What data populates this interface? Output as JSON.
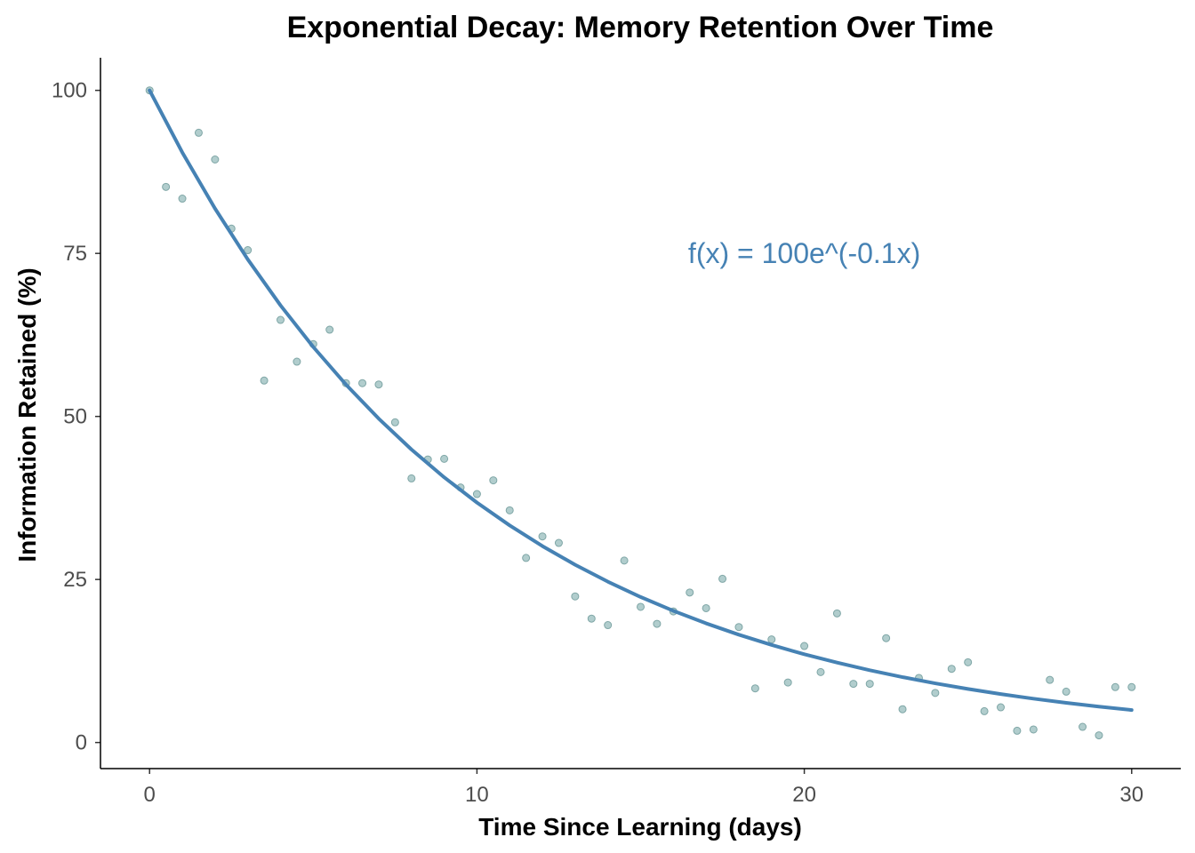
{
  "chart_data": {
    "type": "scatter",
    "title": "Exponential Decay: Memory Retention Over Time",
    "xlabel": "Time Since Learning (days)",
    "ylabel": "Information Retained (%)",
    "xlim": [
      -1.5,
      31.5
    ],
    "ylim": [
      -4,
      105
    ],
    "x_ticks": [
      0,
      10,
      20,
      30
    ],
    "y_ticks": [
      0,
      25,
      50,
      75,
      100
    ],
    "grid": false,
    "legend": "none",
    "annotation": {
      "text": "f(x) = 100e^(-0.1x)",
      "x": 20,
      "y": 75
    },
    "colors": {
      "points": "#a3c4c4",
      "point_outline": "#7fa6a6",
      "curve": "#4682b4",
      "annotation": "#4682b4"
    },
    "series": [
      {
        "kind": "points",
        "x": [
          0,
          0.5,
          1,
          1.5,
          2,
          2.5,
          3,
          3.5,
          4,
          4.5,
          5,
          5.5,
          6,
          6.5,
          7,
          7.5,
          8,
          8.5,
          9,
          9.5,
          10,
          10.5,
          11,
          11.5,
          12,
          12.5,
          13,
          13.5,
          14,
          14.5,
          15,
          15.5,
          16,
          16.5,
          17,
          17.5,
          18,
          18.5,
          19,
          19.5,
          20,
          20.5,
          21,
          21.5,
          22,
          22.5,
          23,
          23.5,
          24,
          24.5,
          25,
          25.5,
          26,
          26.5,
          27,
          27.5,
          28,
          28.5,
          29,
          29.5,
          30
        ],
        "y": [
          100,
          85.2,
          83.4,
          93.5,
          89.4,
          78.8,
          75.5,
          55.5,
          64.8,
          58.4,
          61.1,
          63.3,
          55.1,
          55.1,
          54.9,
          49.1,
          40.5,
          43.4,
          43.5,
          39.1,
          38.1,
          40.2,
          35.6,
          28.3,
          31.6,
          30.6,
          22.4,
          19.0,
          18.0,
          27.9,
          20.8,
          18.2,
          20.1,
          23.0,
          20.6,
          25.1,
          17.7,
          8.3,
          15.8,
          9.2,
          14.8,
          10.8,
          19.8,
          9.0,
          9.0,
          16.0,
          5.1,
          9.9,
          7.6,
          11.3,
          12.3,
          4.8,
          5.4,
          1.8,
          2.0,
          9.6,
          7.8,
          2.4,
          1.1,
          8.5,
          8.5
        ]
      },
      {
        "kind": "curve",
        "formula": "100*exp(-0.1*x)",
        "x": [
          0,
          1,
          2,
          3,
          4,
          5,
          6,
          7,
          8,
          9,
          10,
          11,
          12,
          13,
          14,
          15,
          16,
          17,
          18,
          19,
          20,
          21,
          22,
          23,
          24,
          25,
          26,
          27,
          28,
          29,
          30
        ],
        "y": [
          100,
          90.48,
          81.87,
          74.08,
          67.03,
          60.65,
          54.88,
          49.66,
          44.93,
          40.66,
          36.79,
          33.29,
          30.12,
          27.25,
          24.66,
          22.31,
          20.19,
          18.27,
          16.53,
          14.96,
          13.53,
          12.25,
          11.08,
          10.03,
          9.07,
          8.21,
          7.43,
          6.72,
          6.08,
          5.5,
          4.98
        ]
      }
    ]
  }
}
